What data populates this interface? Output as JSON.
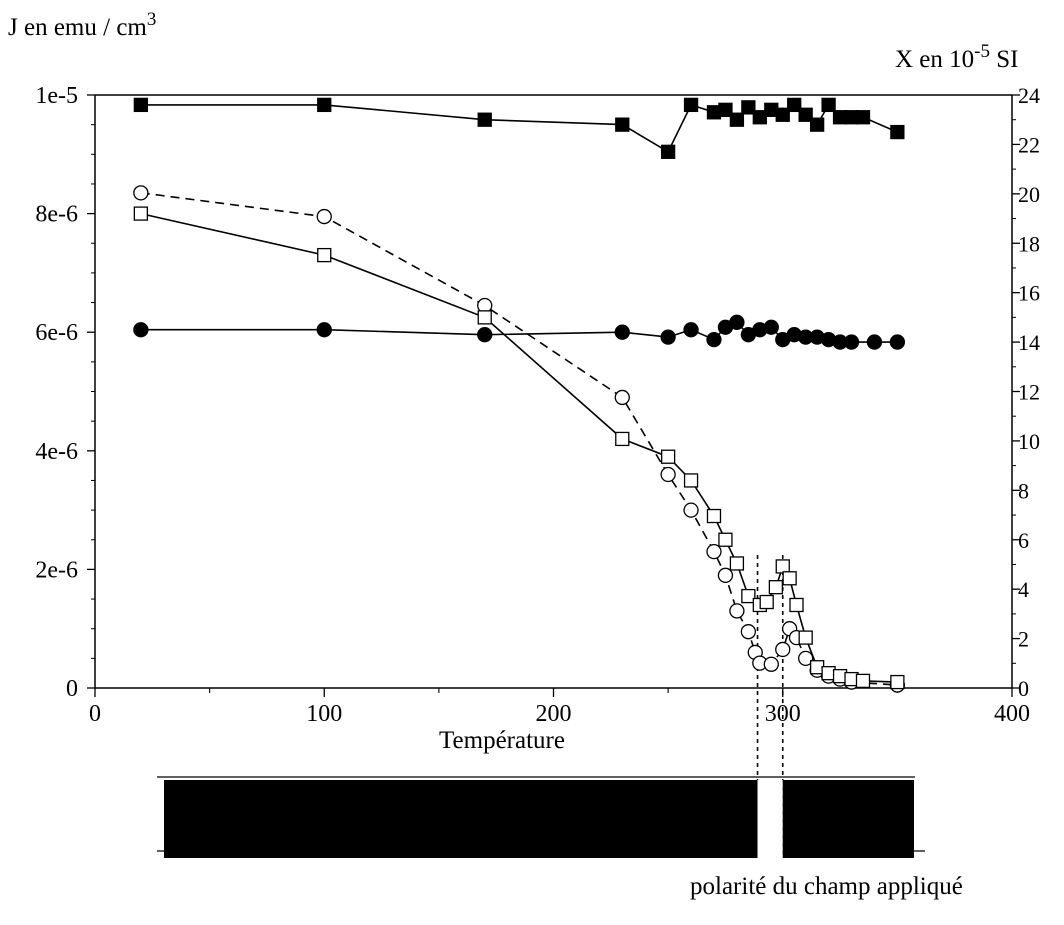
{
  "chart_data": {
    "type": "scatter",
    "ylabel_left": {
      "base": "J en emu / cm",
      "sup": "3"
    },
    "ylabel_right": {
      "base": "X en 10",
      "sup": "-5",
      "unit": " SI"
    },
    "xlabel": "Température",
    "xlim": [
      0,
      400
    ],
    "ylim_left": [
      0,
      1e-05
    ],
    "ylim_right": [
      0,
      24
    ],
    "x_ticks": [
      "0",
      "100",
      "200",
      "300",
      "400"
    ],
    "y_left_ticks": [
      "0",
      "2e-6",
      "4e-6",
      "6e-6",
      "8e-6",
      "1e-5"
    ],
    "y_right_ticks": [
      "0",
      "2",
      "4",
      "6",
      "8",
      "10",
      "12",
      "14",
      "16",
      "18",
      "20",
      "22",
      "24"
    ],
    "series": [
      {
        "marker": "square-filled",
        "line": "solid",
        "axis": "right",
        "x": [
          20,
          100,
          170,
          230,
          250,
          260,
          270,
          275,
          280,
          285,
          290,
          295,
          300,
          305,
          310,
          315,
          320,
          325,
          330,
          335,
          350
        ],
        "y": [
          23.6,
          23.6,
          23.0,
          22.8,
          21.7,
          23.6,
          23.3,
          23.4,
          23.0,
          23.5,
          23.1,
          23.4,
          23.2,
          23.6,
          23.2,
          22.8,
          23.6,
          23.1,
          23.1,
          23.1,
          22.5
        ]
      },
      {
        "marker": "circle-filled",
        "line": "solid",
        "axis": "right",
        "x": [
          20,
          100,
          170,
          230,
          250,
          260,
          270,
          275,
          280,
          285,
          290,
          295,
          300,
          305,
          310,
          315,
          320,
          325,
          330,
          340,
          350
        ],
        "y": [
          14.5,
          14.5,
          14.3,
          14.4,
          14.2,
          14.5,
          14.1,
          14.6,
          14.8,
          14.3,
          14.5,
          14.6,
          14.1,
          14.3,
          14.2,
          14.2,
          14.1,
          14.0,
          14.0,
          14.0,
          14.0
        ]
      },
      {
        "marker": "circle-open",
        "line": "dashed",
        "axis": "left",
        "x": [
          20,
          100,
          170,
          230,
          250,
          260,
          270,
          275,
          280,
          285,
          288,
          290,
          295,
          300,
          303,
          306,
          310,
          315,
          320,
          325,
          330,
          350
        ],
        "y": [
          8.35e-06,
          7.95e-06,
          6.45e-06,
          4.9e-06,
          3.6e-06,
          3e-06,
          2.3e-06,
          1.9e-06,
          1.3e-06,
          9.5e-07,
          6e-07,
          4.2e-07,
          4e-07,
          6.5e-07,
          1e-06,
          8.5e-07,
          5e-07,
          3e-07,
          2e-07,
          1.5e-07,
          1e-07,
          5e-08
        ]
      },
      {
        "marker": "square-open",
        "line": "solid",
        "axis": "left",
        "x": [
          20,
          100,
          170,
          230,
          250,
          260,
          270,
          275,
          280,
          285,
          290,
          293,
          297,
          300,
          303,
          306,
          310,
          315,
          320,
          325,
          330,
          335,
          350
        ],
        "y": [
          8e-06,
          7.3e-06,
          6.25e-06,
          4.2e-06,
          3.9e-06,
          3.5e-06,
          2.9e-06,
          2.5e-06,
          2.1e-06,
          1.55e-06,
          1.4e-06,
          1.45e-06,
          1.7e-06,
          2.05e-06,
          1.85e-06,
          1.4e-06,
          8.5e-07,
          3.5e-07,
          2.5e-07,
          2e-07,
          1.5e-07,
          1.2e-07,
          1e-07
        ]
      }
    ],
    "markers_vertical": [
      289,
      300
    ],
    "polarity": {
      "label": "polarité du champ appliqué",
      "segments": [
        {
          "from": 20,
          "to": 289,
          "state": "black"
        },
        {
          "from": 289,
          "to": 300,
          "state": "white"
        },
        {
          "from": 300,
          "to": 350,
          "state": "black"
        }
      ]
    }
  }
}
